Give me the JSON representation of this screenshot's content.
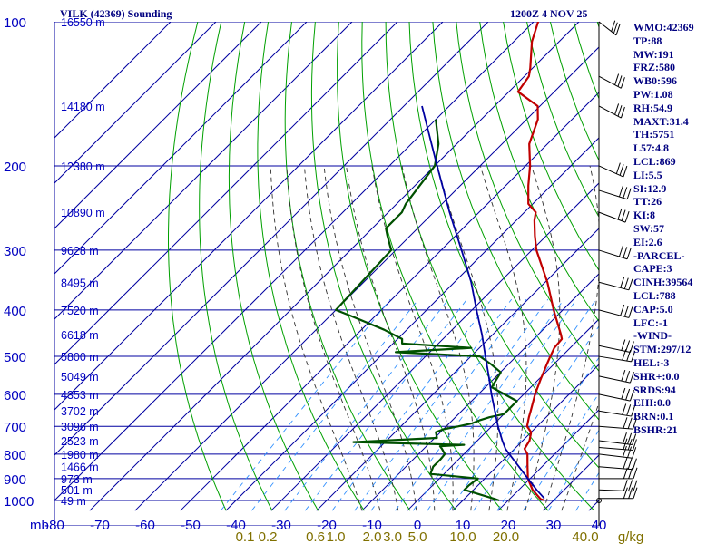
{
  "header": {
    "title": "VILK (42369) Sounding",
    "date": "1200Z  4 NOV 25"
  },
  "indices": [
    "WMO:42369",
    "TP:88",
    "MW:191",
    "FRZ:580",
    "WB0:596",
    "PW:1.08",
    "RH:54.9",
    "MAXT:31.4",
    "TH:5751",
    "L57:4.8",
    "LCL:869",
    "LI:5.5",
    "SI:12.9",
    "TT:26",
    "KI:8",
    "SW:57",
    "EI:2.6",
    "-PARCEL-",
    "CAPE:3",
    "CINH:39564",
    "LCL:788",
    "CAP:5.0",
    "LFC:-1",
    "-WIND-",
    "STM:297/12",
    "HEL:-3",
    "SHR+:0.0",
    "SRDS:94",
    "EHI:0.0",
    "BRN:0.1",
    "BSHR:21"
  ],
  "colors": {
    "axis_text": "#0000c0",
    "isobar": "#0000a0",
    "isotherm": "#0000a0",
    "dry_adiabat": "#00a000",
    "moist_adiabat": "#303030",
    "mixing_ratio": "#3090ff",
    "temperature": "#c00000",
    "dewpoint": "#005000",
    "parcel": "#0000a0",
    "barb": "#000000",
    "mixing_label": "#807000"
  },
  "chart_data": {
    "type": "line",
    "title": "VILK (42369) Sounding",
    "x_unit_label": "mb",
    "xlim": [
      -80,
      40
    ],
    "ylim": [
      1000,
      100
    ],
    "log_scale_y": true,
    "grid": true,
    "temperature_ticks": [
      -80,
      -70,
      -60,
      -50,
      -40,
      -30,
      -20,
      -10,
      0,
      10,
      20,
      30,
      40
    ],
    "pressure_ticks": [
      100,
      200,
      300,
      400,
      500,
      600,
      700,
      800,
      900,
      1000
    ],
    "height_labels": [
      {
        "p": 100,
        "label": "16550 m"
      },
      {
        "p": 150,
        "label": "14180 m"
      },
      {
        "p": 200,
        "label": "12380 m"
      },
      {
        "p": 250,
        "label": "10890 m"
      },
      {
        "p": 300,
        "label": "9628 m"
      },
      {
        "p": 350,
        "label": "8495 m"
      },
      {
        "p": 400,
        "label": "7520 m"
      },
      {
        "p": 450,
        "label": "6618 m"
      },
      {
        "p": 500,
        "label": "5800 m"
      },
      {
        "p": 550,
        "label": "5049 m"
      },
      {
        "p": 600,
        "label": "4353 m"
      },
      {
        "p": 650,
        "label": "3702 m"
      },
      {
        "p": 700,
        "label": "3096 m"
      },
      {
        "p": 750,
        "label": "2523 m"
      },
      {
        "p": 800,
        "label": "1980 m"
      },
      {
        "p": 850,
        "label": "1466 m"
      },
      {
        "p": 900,
        "label": "973 m"
      },
      {
        "p": 950,
        "label": "501 m"
      },
      {
        "p": 1000,
        "label": "49 m"
      }
    ],
    "mixing_ratio_ticks": [
      {
        "label": "0.1",
        "x": -38
      },
      {
        "label": "0.2",
        "x": -33
      },
      {
        "label": "0.6",
        "x": -22.5
      },
      {
        "label": "1.0",
        "x": -18
      },
      {
        "label": "2.0",
        "x": -10
      },
      {
        "label": "3.0",
        "x": -5.5
      },
      {
        "label": "5.0",
        "x": 0
      },
      {
        "label": "10.0",
        "x": 10
      },
      {
        "label": "20.0",
        "x": 19.5
      },
      {
        "label": "40.0",
        "x": 37
      },
      {
        "label": "g/kg",
        "x": 47
      }
    ],
    "series": [
      {
        "key": "temperature",
        "points": [
          [
            1000,
            28
          ],
          [
            993,
            26.8
          ],
          [
            950,
            23
          ],
          [
            900,
            19.5
          ],
          [
            850,
            16.8
          ],
          [
            800,
            14
          ],
          [
            780,
            12.2
          ],
          [
            750,
            11.5
          ],
          [
            720,
            10
          ],
          [
            700,
            7.8
          ],
          [
            670,
            6.2
          ],
          [
            650,
            5.2
          ],
          [
            600,
            2.5
          ],
          [
            560,
            0.5
          ],
          [
            520,
            -1.5
          ],
          [
            500,
            -2.5
          ],
          [
            480,
            -3.5
          ],
          [
            460,
            -3.8
          ],
          [
            450,
            -5
          ],
          [
            400,
            -12
          ],
          [
            350,
            -19.5
          ],
          [
            300,
            -29
          ],
          [
            280,
            -32.5
          ],
          [
            260,
            -36
          ],
          [
            250,
            -37.5
          ],
          [
            240,
            -41
          ],
          [
            220,
            -45
          ],
          [
            200,
            -49
          ],
          [
            180,
            -54
          ],
          [
            160,
            -57.5
          ],
          [
            150,
            -60.5
          ],
          [
            140,
            -68
          ],
          [
            130,
            -69
          ],
          [
            125,
            -70.5
          ],
          [
            110,
            -76
          ],
          [
            100,
            -79
          ],
          [
            95,
            -80
          ]
        ]
      },
      {
        "key": "dewpoint",
        "points": [
          [
            1000,
            18
          ],
          [
            993,
            16.8
          ],
          [
            950,
            8
          ],
          [
            930,
            8
          ],
          [
            900,
            8.5
          ],
          [
            880,
            -3
          ],
          [
            850,
            -4
          ],
          [
            820,
            -4
          ],
          [
            800,
            -4.2
          ],
          [
            780,
            -6
          ],
          [
            770,
            -7
          ],
          [
            765,
            -2
          ],
          [
            755,
            -27
          ],
          [
            740,
            -9.5
          ],
          [
            720,
            -11
          ],
          [
            710,
            -10
          ],
          [
            700,
            -7.3
          ],
          [
            690,
            -5
          ],
          [
            680,
            -4
          ],
          [
            670,
            -2.5
          ],
          [
            660,
            0
          ],
          [
            620,
            0
          ],
          [
            580,
            -8.6
          ],
          [
            540,
            -9.9
          ],
          [
            520,
            -13.7
          ],
          [
            500,
            -18
          ],
          [
            490,
            -37.5
          ],
          [
            480,
            -21.8
          ],
          [
            470,
            -38
          ],
          [
            460,
            -39
          ],
          [
            440,
            -45
          ],
          [
            410,
            -56
          ],
          [
            400,
            -60
          ],
          [
            300,
            -61
          ],
          [
            280,
            -65
          ],
          [
            270,
            -67
          ],
          [
            250,
            -67
          ],
          [
            240,
            -68
          ],
          [
            200,
            -70
          ],
          [
            180,
            -74
          ],
          [
            160,
            -80
          ]
        ]
      },
      {
        "key": "parcel",
        "points": [
          [
            990,
            27.5
          ],
          [
            950,
            23.9
          ],
          [
            900,
            19.5
          ],
          [
            850,
            14.9
          ],
          [
            800,
            10
          ],
          [
            780,
            8
          ],
          [
            750,
            5.5
          ],
          [
            700,
            1.4
          ],
          [
            650,
            -2.7
          ],
          [
            600,
            -7.1
          ],
          [
            550,
            -11.7
          ],
          [
            500,
            -16.8
          ],
          [
            450,
            -22.4
          ],
          [
            400,
            -29
          ],
          [
            350,
            -36.3
          ],
          [
            300,
            -45.5
          ],
          [
            250,
            -56.5
          ],
          [
            200,
            -69.5
          ],
          [
            150,
            -86
          ]
        ]
      }
    ],
    "wind_levels": [
      [
        1000,
        0
      ],
      [
        990,
        90
      ],
      [
        950,
        85
      ],
      [
        900,
        90
      ],
      [
        850,
        80
      ],
      [
        800,
        75
      ],
      [
        775,
        80
      ],
      [
        750,
        75
      ],
      [
        700,
        80
      ],
      [
        650,
        70
      ],
      [
        600,
        65
      ],
      [
        550,
        65
      ],
      [
        500,
        70
      ],
      [
        475,
        65
      ],
      [
        400,
        60
      ],
      [
        350,
        60
      ],
      [
        300,
        55
      ],
      [
        250,
        50
      ],
      [
        225,
        55
      ],
      [
        200,
        45
      ],
      [
        150,
        40
      ],
      [
        130,
        40
      ],
      [
        100,
        30
      ]
    ]
  }
}
